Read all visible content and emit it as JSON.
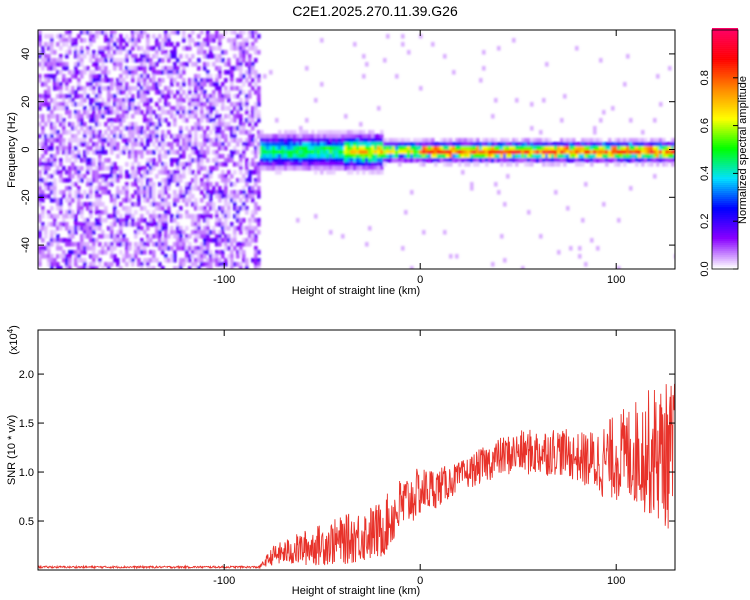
{
  "title": "C2E1.2025.270.11.39.G26",
  "chart_data": [
    {
      "type": "heatmap",
      "name": "spectrogram",
      "xlabel": "Height of straight line (km)",
      "ylabel": "Frequency (Hz)",
      "xlim": [
        -195,
        130
      ],
      "ylim": [
        -50,
        50
      ],
      "xticks": [
        -100,
        0,
        100
      ],
      "xtick_labels": [
        "-100",
        "0",
        "100"
      ],
      "yticks": [
        -40,
        -20,
        0,
        20,
        40
      ],
      "ytick_labels": [
        "-40",
        "-20",
        "0",
        "20",
        "40"
      ],
      "colorbar": {
        "label": "Normalized spectral amplitude",
        "range": [
          0,
          1
        ],
        "ticks": [
          0.0,
          0.2,
          0.4,
          0.6,
          0.8
        ],
        "tick_labels": [
          "0.0",
          "0.2",
          "0.4",
          "0.6",
          "0.8"
        ],
        "colormap": [
          "#ffffff",
          "#8800ff",
          "#0000ff",
          "#00e0ff",
          "#00ff00",
          "#ffff00",
          "#ff8800",
          "#ff0000",
          "#ff0066"
        ]
      },
      "features": {
        "noise_region_x": [
          -195,
          -83
        ],
        "noise_amplitude": 0.15,
        "signal_ridge_freq_hz": 0,
        "signal_ridge_x": [
          -83,
          130
        ],
        "peak_amplitude": 1.0
      }
    },
    {
      "type": "line",
      "name": "snr",
      "xlabel": "Height of straight line (km)",
      "ylabel": "SNR (10 * v/v)",
      "scale_label": "(x10",
      "scale_exponent": "4",
      "scale_suffix": ")",
      "xlim": [
        -195,
        130
      ],
      "ylim": [
        0,
        2.45
      ],
      "xticks": [
        -100,
        0,
        100
      ],
      "xtick_labels": [
        "-100",
        "0",
        "100"
      ],
      "yticks": [
        0.5,
        1.0,
        1.5,
        2.0
      ],
      "ytick_labels": [
        "0.5",
        "1.0",
        "1.5",
        "2.0"
      ],
      "line_color": "#e8322a",
      "envelope": {
        "x": [
          -195,
          -82,
          -75,
          -60,
          -40,
          -20,
          -10,
          0,
          10,
          20,
          30,
          40,
          50,
          60,
          70,
          80,
          90,
          100,
          110,
          120,
          130
        ],
        "y": [
          0.03,
          0.03,
          0.15,
          0.22,
          0.3,
          0.4,
          0.65,
          0.8,
          0.85,
          0.95,
          1.05,
          1.15,
          1.2,
          1.2,
          1.22,
          1.15,
          1.1,
          1.15,
          1.2,
          1.2,
          1.15
        ],
        "amp": [
          0.01,
          0.01,
          0.1,
          0.18,
          0.25,
          0.3,
          0.3,
          0.25,
          0.2,
          0.15,
          0.18,
          0.2,
          0.22,
          0.25,
          0.25,
          0.25,
          0.35,
          0.45,
          0.55,
          0.7,
          0.8
        ]
      }
    }
  ]
}
